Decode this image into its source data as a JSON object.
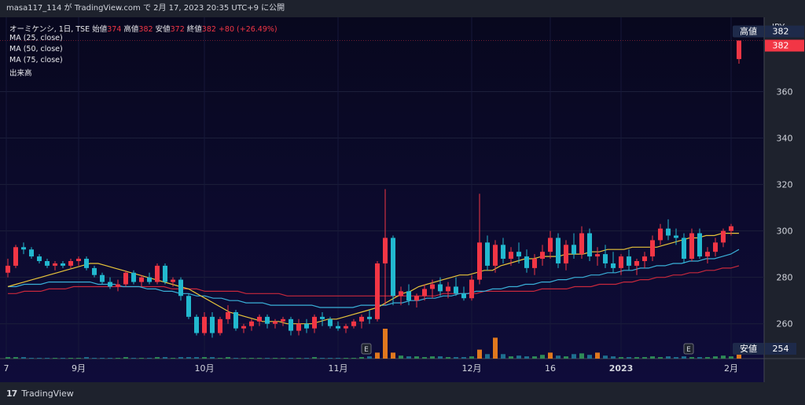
{
  "header": {
    "caption": "masa117_114 が TradingView.com で 2月 17, 2023 20:35 UTC+9 に公開"
  },
  "legend": {
    "symbol": "オーミケンシ, 1日, TSE",
    "open_label": "始値",
    "open": "374",
    "high_label": "高値",
    "high": "382",
    "low_label": "安値",
    "low": "372",
    "close_label": "終値",
    "close": "382",
    "change": "+80 (+26.49%)",
    "ma_lines": [
      "MA (25, close)",
      "MA (50, close)",
      "MA (75, close)"
    ],
    "volume_label": "出来高"
  },
  "footer": {
    "brand": "TradingView"
  },
  "colors": {
    "up": "#f23645",
    "down": "#22b8cf",
    "ma25": "#e8c53a",
    "ma50": "#3ab0d8",
    "ma75": "#c8283c",
    "bg": "#0d0b30"
  },
  "chart_data": {
    "type": "candlestick",
    "currency": "JPY",
    "ylim": [
      245,
      392
    ],
    "y_ticks": [
      260,
      280,
      300,
      320,
      340,
      360
    ],
    "x_ticks": [
      "7",
      "9月",
      "10月",
      "11月",
      "12月",
      "16",
      "2023",
      "2月"
    ],
    "high_marker": {
      "label": "高値",
      "value": 382
    },
    "low_marker": {
      "label": "安値",
      "value": 254
    },
    "last_price": 382,
    "events": [
      "E",
      "E"
    ],
    "candles": [
      [
        282,
        288,
        280,
        285
      ],
      [
        285,
        294,
        284,
        293
      ],
      [
        293,
        295,
        290,
        292
      ],
      [
        292,
        293,
        288,
        289
      ],
      [
        289,
        290,
        286,
        287
      ],
      [
        287,
        288,
        284,
        285
      ],
      [
        285,
        287,
        283,
        286
      ],
      [
        286,
        287,
        284,
        285
      ],
      [
        285,
        288,
        284,
        287
      ],
      [
        287,
        289,
        285,
        288
      ],
      [
        288,
        289,
        283,
        284
      ],
      [
        284,
        285,
        280,
        281
      ],
      [
        281,
        282,
        277,
        278
      ],
      [
        278,
        280,
        275,
        276
      ],
      [
        276,
        279,
        274,
        277
      ],
      [
        277,
        283,
        276,
        282
      ],
      [
        282,
        283,
        277,
        278
      ],
      [
        278,
        281,
        276,
        280
      ],
      [
        280,
        282,
        277,
        278
      ],
      [
        278,
        286,
        277,
        285
      ],
      [
        285,
        286,
        277,
        278
      ],
      [
        278,
        280,
        276,
        279
      ],
      [
        279,
        280,
        270,
        272
      ],
      [
        272,
        273,
        262,
        263
      ],
      [
        263,
        264,
        255,
        256
      ],
      [
        256,
        265,
        255,
        263
      ],
      [
        263,
        265,
        254,
        256
      ],
      [
        256,
        263,
        255,
        262
      ],
      [
        262,
        268,
        260,
        265
      ],
      [
        265,
        266,
        257,
        258
      ],
      [
        258,
        260,
        256,
        259
      ],
      [
        259,
        262,
        257,
        261
      ],
      [
        261,
        264,
        259,
        263
      ],
      [
        263,
        264,
        258,
        260
      ],
      [
        260,
        262,
        258,
        261
      ],
      [
        261,
        263,
        259,
        262
      ],
      [
        262,
        263,
        255,
        257
      ],
      [
        257,
        262,
        255,
        260
      ],
      [
        260,
        262,
        256,
        258
      ],
      [
        258,
        264,
        256,
        263
      ],
      [
        263,
        265,
        259,
        262
      ],
      [
        262,
        263,
        258,
        259
      ],
      [
        259,
        261,
        257,
        258
      ],
      [
        258,
        260,
        256,
        259
      ],
      [
        259,
        262,
        258,
        261
      ],
      [
        261,
        264,
        258,
        263
      ],
      [
        263,
        266,
        260,
        262
      ],
      [
        262,
        287,
        261,
        286
      ],
      [
        286,
        318,
        268,
        297
      ],
      [
        297,
        298,
        268,
        272
      ],
      [
        272,
        276,
        268,
        274
      ],
      [
        274,
        277,
        268,
        270
      ],
      [
        270,
        273,
        267,
        272
      ],
      [
        272,
        277,
        270,
        275
      ],
      [
        275,
        279,
        271,
        277
      ],
      [
        277,
        280,
        272,
        274
      ],
      [
        274,
        278,
        271,
        276
      ],
      [
        276,
        280,
        272,
        273
      ],
      [
        273,
        276,
        270,
        271
      ],
      [
        271,
        281,
        270,
        279
      ],
      [
        279,
        316,
        277,
        295
      ],
      [
        295,
        298,
        283,
        285
      ],
      [
        285,
        296,
        282,
        294
      ],
      [
        294,
        297,
        286,
        288
      ],
      [
        288,
        293,
        285,
        291
      ],
      [
        291,
        295,
        286,
        289
      ],
      [
        289,
        292,
        282,
        284
      ],
      [
        284,
        290,
        281,
        288
      ],
      [
        288,
        294,
        285,
        291
      ],
      [
        291,
        300,
        288,
        297
      ],
      [
        297,
        299,
        284,
        286
      ],
      [
        286,
        296,
        283,
        294
      ],
      [
        294,
        299,
        288,
        290
      ],
      [
        290,
        302,
        288,
        299
      ],
      [
        299,
        301,
        287,
        289
      ],
      [
        289,
        293,
        285,
        290
      ],
      [
        290,
        294,
        284,
        286
      ],
      [
        286,
        291,
        282,
        284
      ],
      [
        284,
        290,
        281,
        289
      ],
      [
        289,
        292,
        283,
        285
      ],
      [
        285,
        288,
        281,
        287
      ],
      [
        287,
        291,
        284,
        289
      ],
      [
        289,
        298,
        287,
        296
      ],
      [
        296,
        303,
        294,
        301
      ],
      [
        301,
        305,
        296,
        298
      ],
      [
        298,
        301,
        294,
        297
      ],
      [
        297,
        299,
        286,
        288
      ],
      [
        288,
        301,
        287,
        299
      ],
      [
        299,
        301,
        288,
        289
      ],
      [
        289,
        293,
        286,
        291
      ],
      [
        291,
        297,
        289,
        295
      ],
      [
        295,
        301,
        293,
        300
      ],
      [
        300,
        303,
        298,
        302
      ],
      [
        374,
        382,
        372,
        382
      ]
    ],
    "ma25": [
      276,
      277,
      278,
      279,
      280,
      281,
      282,
      283,
      284,
      285,
      286,
      286,
      285,
      284,
      283,
      282,
      281,
      280,
      279,
      278,
      277,
      276,
      275,
      273,
      271,
      269,
      267,
      265,
      264,
      263,
      262,
      261,
      261,
      261,
      260,
      260,
      260,
      260,
      261,
      262,
      262,
      263,
      264,
      265,
      266,
      267,
      269,
      271,
      273,
      274,
      276,
      277,
      278,
      279,
      280,
      281,
      281,
      282,
      283,
      283,
      285,
      286,
      287,
      288,
      288,
      289,
      289,
      289,
      290,
      290,
      290,
      291,
      291,
      292,
      292,
      292,
      293,
      293,
      293,
      293,
      294,
      295,
      296,
      297,
      297,
      298,
      298,
      299,
      299,
      299
    ],
    "ma50": [
      276,
      276,
      277,
      277,
      277,
      278,
      278,
      278,
      278,
      278,
      278,
      277,
      277,
      277,
      276,
      276,
      276,
      275,
      275,
      274,
      274,
      273,
      273,
      272,
      272,
      271,
      271,
      270,
      270,
      269,
      269,
      269,
      268,
      268,
      268,
      268,
      268,
      268,
      267,
      267,
      267,
      267,
      267,
      268,
      268,
      268,
      268,
      269,
      269,
      270,
      270,
      271,
      271,
      272,
      272,
      273,
      273,
      274,
      274,
      275,
      275,
      276,
      276,
      277,
      277,
      278,
      278,
      279,
      279,
      280,
      280,
      281,
      281,
      282,
      282,
      283,
      283,
      284,
      284,
      285,
      285,
      286,
      286,
      287,
      287,
      288,
      288,
      289,
      290,
      292
    ],
    "ma75": [
      273,
      273,
      274,
      274,
      274,
      275,
      275,
      275,
      276,
      276,
      276,
      276,
      276,
      276,
      276,
      276,
      276,
      276,
      276,
      276,
      275,
      275,
      275,
      275,
      274,
      274,
      274,
      274,
      274,
      273,
      273,
      273,
      273,
      273,
      272,
      272,
      272,
      272,
      272,
      272,
      272,
      272,
      272,
      272,
      272,
      272,
      272,
      272,
      272,
      272,
      272,
      272,
      272,
      273,
      273,
      273,
      273,
      273,
      274,
      274,
      274,
      274,
      274,
      274,
      274,
      275,
      275,
      275,
      275,
      276,
      276,
      276,
      277,
      277,
      277,
      278,
      278,
      279,
      279,
      280,
      280,
      281,
      281,
      282,
      282,
      283,
      283,
      284,
      284,
      285
    ],
    "volume": [
      2,
      2,
      2,
      1,
      1,
      1,
      1,
      1,
      1,
      1,
      2,
      1,
      1,
      1,
      1,
      2,
      1,
      1,
      1,
      2,
      2,
      1,
      2,
      2,
      2,
      2,
      2,
      1,
      2,
      1,
      1,
      1,
      1,
      1,
      1,
      1,
      1,
      1,
      1,
      2,
      1,
      1,
      1,
      1,
      1,
      2,
      3,
      8,
      40,
      8,
      4,
      3,
      3,
      2,
      3,
      3,
      2,
      2,
      2,
      3,
      12,
      6,
      28,
      6,
      3,
      4,
      3,
      3,
      5,
      8,
      4,
      3,
      6,
      7,
      5,
      8,
      4,
      3,
      2,
      2,
      2,
      2,
      3,
      2,
      3,
      2,
      3,
      2,
      2,
      2,
      3,
      4,
      3,
      10
    ]
  }
}
